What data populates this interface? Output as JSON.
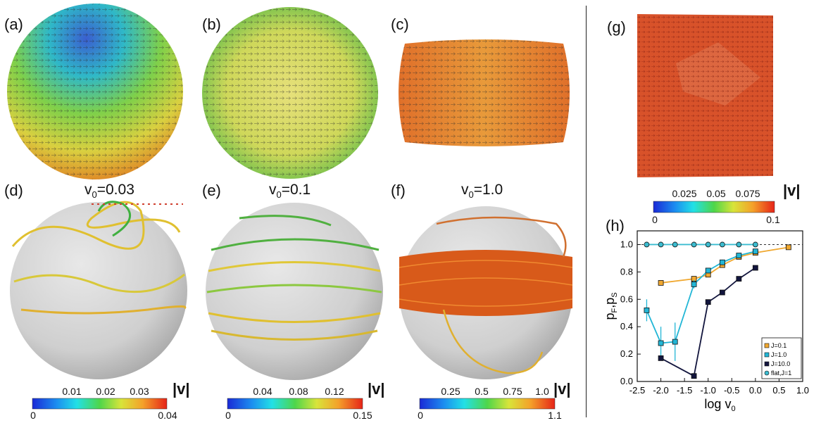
{
  "panels": {
    "a": {
      "label": "(a)"
    },
    "b": {
      "label": "(b)"
    },
    "c": {
      "label": "(c)"
    },
    "d": {
      "label": "(d)",
      "title_var": "v",
      "title_sub": "0",
      "title_val": "=0.03"
    },
    "e": {
      "label": "(e)",
      "title_var": "v",
      "title_sub": "0",
      "title_val": "=0.1"
    },
    "f": {
      "label": "(f)",
      "title_var": "v",
      "title_sub": "0",
      "title_val": "=1.0"
    },
    "g": {
      "label": "(g)"
    },
    "h": {
      "label": "(h)"
    }
  },
  "colorbars": {
    "d": {
      "ticks": [
        "0.01",
        "0.02",
        "0.03"
      ],
      "min": "0",
      "max": "0.04",
      "unit": "|v|"
    },
    "e": {
      "ticks": [
        "0.04",
        "0.08",
        "0.12"
      ],
      "min": "0",
      "max": "0.15",
      "unit": "|v|"
    },
    "f": {
      "ticks": [
        "0.25",
        "0.5",
        "0.75",
        "1.0"
      ],
      "min": "0",
      "max": "1.1",
      "unit": "|v|"
    },
    "g": {
      "ticks": [
        "0.025",
        "0.05",
        "0.075"
      ],
      "min": "0",
      "max": "0.1",
      "unit": "|v|"
    }
  },
  "chart_data": {
    "type": "line",
    "xlabel_main": "log v",
    "xlabel_sub": "0",
    "ylabel_main": "p",
    "ylabel_sub1": "F",
    "ylabel_sep": ",p",
    "ylabel_sub2": "S",
    "xlim": [
      -2.5,
      1.0
    ],
    "ylim": [
      0.0,
      1.1
    ],
    "xticks": [
      "-2.5",
      "-2.0",
      "-1.5",
      "-1.0",
      "-0.5",
      "0.0",
      "0.5",
      "1.0"
    ],
    "yticks": [
      "0.0",
      "0.2",
      "0.4",
      "0.6",
      "0.8",
      "1.0"
    ],
    "reference_line_y": 1.0,
    "legend_position": "bottom-right",
    "series": [
      {
        "name": "J=0.1",
        "color": "#f0a830",
        "x": [
          -2.0,
          -1.3,
          -1.0,
          -0.7,
          -0.35,
          0.0,
          0.7
        ],
        "y": [
          0.72,
          0.75,
          0.78,
          0.85,
          0.91,
          0.94,
          0.98
        ],
        "err": [
          0,
          0,
          0,
          0,
          0,
          0,
          0
        ]
      },
      {
        "name": "J=1.0",
        "color": "#22b6d6",
        "x": [
          -2.3,
          -2.0,
          -1.7,
          -1.3,
          -1.0,
          -0.7,
          -0.35,
          0.0
        ],
        "y": [
          0.52,
          0.28,
          0.29,
          0.71,
          0.81,
          0.87,
          0.92,
          0.95
        ],
        "err": [
          0.08,
          0.12,
          0.14,
          0.03,
          0.02,
          0.02,
          0.01,
          0.01
        ]
      },
      {
        "name": "J=10.0",
        "color": "#12153d",
        "x": [
          -2.0,
          -1.3,
          -1.0,
          -0.7,
          -0.35,
          0.0
        ],
        "y": [
          0.17,
          0.04,
          0.58,
          0.65,
          0.75,
          0.83
        ],
        "err": [
          0,
          0,
          0,
          0,
          0,
          0
        ]
      },
      {
        "name": "flat,J=1",
        "color": "#3bbcd0",
        "x": [
          -2.3,
          -2.0,
          -1.7,
          -1.3,
          -1.0,
          -0.7,
          -0.35,
          0.0
        ],
        "y": [
          1.0,
          1.0,
          1.0,
          1.0,
          1.0,
          1.0,
          1.0,
          1.0
        ],
        "err": [
          0,
          0,
          0,
          0,
          0,
          0,
          0,
          0
        ]
      }
    ]
  }
}
